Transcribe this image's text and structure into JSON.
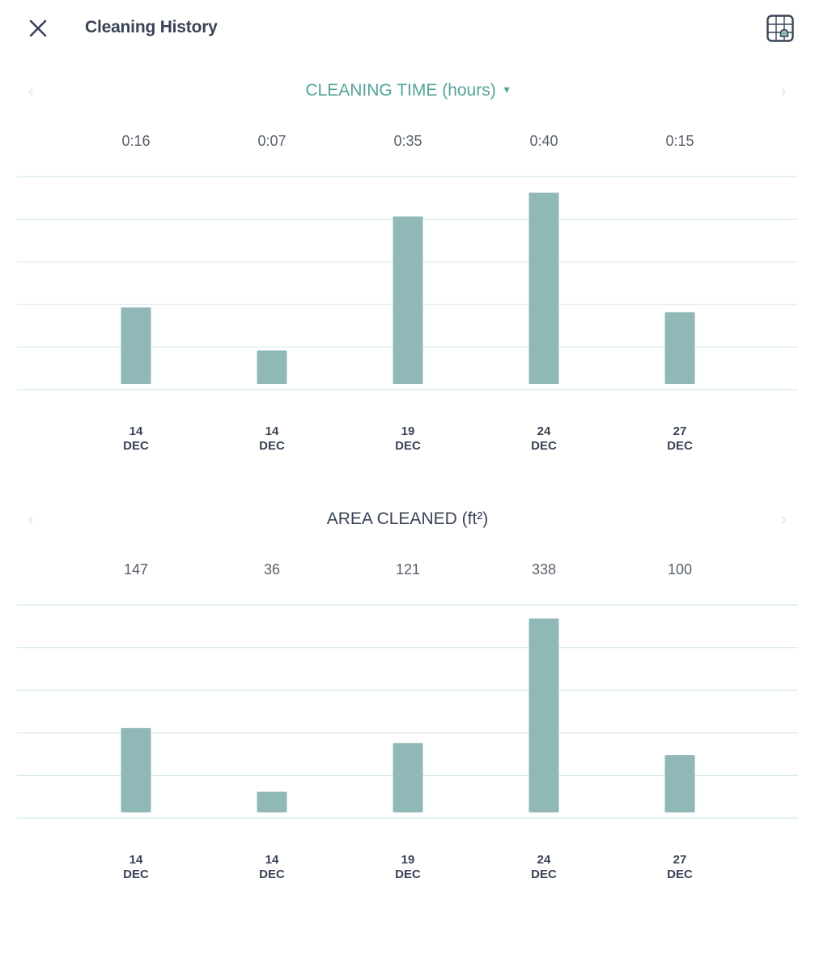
{
  "header": {
    "title": "Cleaning History",
    "close_icon": "close-icon",
    "map_icon": "map-grid-icon"
  },
  "colors": {
    "bar": "#8fb8b7",
    "grid": "#d8eaea",
    "accent": "#55a39a",
    "text_dark": "#394355",
    "value_text": "#59606b"
  },
  "nav": {
    "prev": "‹",
    "next": "›"
  },
  "charts": {
    "time": {
      "title": "CLEANING TIME (hours)",
      "dropdown_glyph": "▾"
    },
    "area": {
      "title": "AREA CLEANED (ft²)"
    }
  },
  "chart_data": [
    {
      "type": "bar",
      "title": "CLEANING TIME (hours)",
      "categories": [
        "14\nDEC",
        "14\nDEC",
        "19\nDEC",
        "24\nDEC",
        "27\nDEC"
      ],
      "category_days": [
        "14",
        "14",
        "19",
        "24",
        "27"
      ],
      "category_months": [
        "DEC",
        "DEC",
        "DEC",
        "DEC",
        "DEC"
      ],
      "value_labels": [
        "0:16",
        "0:07",
        "0:35",
        "0:40",
        "0:15"
      ],
      "values": [
        16,
        7,
        35,
        40,
        15
      ],
      "ylim": [
        0,
        42
      ],
      "grid": true
    },
    {
      "type": "bar",
      "title": "AREA CLEANED (ft²)",
      "categories": [
        "14\nDEC",
        "14\nDEC",
        "19\nDEC",
        "24\nDEC",
        "27\nDEC"
      ],
      "category_days": [
        "14",
        "14",
        "19",
        "24",
        "27"
      ],
      "category_months": [
        "DEC",
        "DEC",
        "DEC",
        "DEC",
        "DEC"
      ],
      "value_labels": [
        "147",
        "36",
        "121",
        "338",
        "100"
      ],
      "values": [
        147,
        36,
        121,
        338,
        100
      ],
      "ylim": [
        0,
        350
      ],
      "grid": true
    }
  ]
}
